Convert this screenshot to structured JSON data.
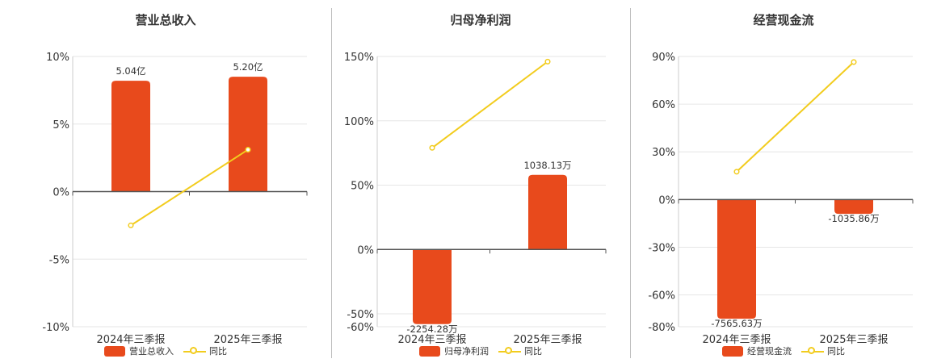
{
  "colors": {
    "bar": "#e84a1c",
    "line": "#f2cc1e",
    "grid": "#e6e6e6",
    "axis": "#555555"
  },
  "chart_data": [
    {
      "type": "bar",
      "title": "营业总收入",
      "categories": [
        "2024年三季报",
        "2025年三季报"
      ],
      "bar_series": {
        "name": "营业总收入",
        "values": [
          5.04,
          5.2
        ],
        "labels": [
          "5.04亿",
          "5.20亿"
        ],
        "unit": "亿"
      },
      "line_series": {
        "name": "同比",
        "values": [
          -2.5,
          3.1
        ]
      },
      "y_ticks": [
        "10%",
        "5%",
        "0%",
        "-5%",
        "-10%"
      ],
      "ylim": [
        -10,
        10
      ],
      "bar_heights_pct": [
        8.2,
        8.5
      ],
      "grid": true,
      "legend_position": "bottom"
    },
    {
      "type": "bar",
      "title": "归母净利润",
      "categories": [
        "2024年三季报",
        "2025年三季报"
      ],
      "bar_series": {
        "name": "归母净利润",
        "values": [
          -2254.28,
          1038.13
        ],
        "labels": [
          "-2254.28万",
          "1038.13万"
        ],
        "unit": "万"
      },
      "line_series": {
        "name": "同比",
        "values": [
          79,
          146
        ]
      },
      "y_ticks": [
        "150%",
        "100%",
        "50%",
        "0%",
        "-50%",
        "-60%"
      ],
      "ylim": [
        -60,
        150
      ],
      "bar_heights_pct": [
        -58,
        58
      ],
      "grid": true,
      "legend_position": "bottom"
    },
    {
      "type": "bar",
      "title": "经营现金流",
      "categories": [
        "2024年三季报",
        "2025年三季报"
      ],
      "bar_series": {
        "name": "经营现金流",
        "values": [
          -7565.63,
          -1035.86
        ],
        "labels": [
          "-7565.63万",
          "-1035.86万"
        ],
        "unit": "万"
      },
      "line_series": {
        "name": "同比",
        "values": [
          17.5,
          86.5
        ]
      },
      "y_ticks": [
        "90%",
        "60%",
        "30%",
        "0%",
        "-30%",
        "-60%",
        "-80%"
      ],
      "ylim": [
        -80,
        90
      ],
      "bar_heights_pct": [
        -75,
        -9
      ],
      "grid": true,
      "legend_position": "bottom"
    }
  ]
}
